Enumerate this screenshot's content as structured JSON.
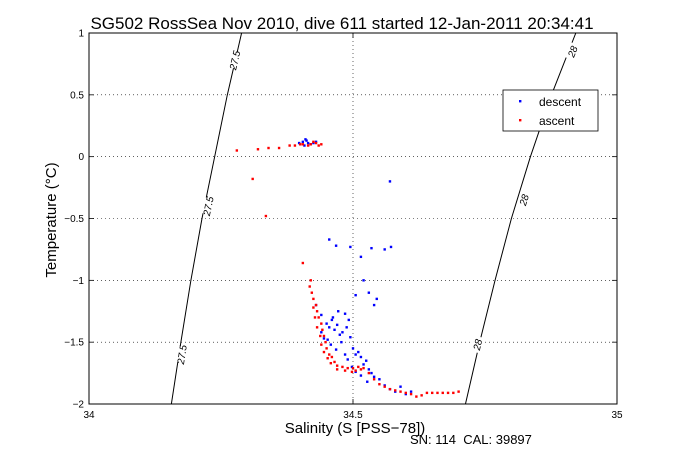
{
  "chart_data": {
    "type": "scatter",
    "title": "SG502 RossSea Nov 2010, dive 611 started 12-Jan-2011 20:34:41",
    "xlabel": "Salinity (S [PSS−78])",
    "ylabel": "Temperature (°C)",
    "xlim": [
      34,
      35
    ],
    "ylim": [
      -2,
      1
    ],
    "x_ticks": [
      34,
      34.5,
      35
    ],
    "y_ticks": [
      -2,
      -1.5,
      -1,
      -0.5,
      0,
      0.5,
      1
    ],
    "x_tick_labels": [
      "34",
      "34.5",
      "35"
    ],
    "y_tick_labels": [
      "−2",
      "−1.5",
      "−1",
      "−0.5",
      "0",
      "0.5",
      "1"
    ],
    "grid": true,
    "legend_position": "top-right",
    "footer": "SN: 114  CAL: 39897",
    "density_contours": [
      {
        "label": "27.5",
        "points": [
          [
            34.289,
            1.0
          ],
          [
            34.262,
            0.5
          ],
          [
            34.238,
            0.0
          ],
          [
            34.214,
            -0.5
          ],
          [
            34.193,
            -1.0
          ],
          [
            34.174,
            -1.5
          ],
          [
            34.156,
            -2.0
          ]
        ],
        "labels_at": [
          [
            34.276,
            0.78
          ],
          [
            34.226,
            -0.4
          ],
          [
            34.176,
            -1.6
          ]
        ]
      },
      {
        "label": "28",
        "points": [
          [
            34.922,
            1.0
          ],
          [
            34.876,
            0.5
          ],
          [
            34.836,
            0.0
          ],
          [
            34.8,
            -0.5
          ],
          [
            34.769,
            -1.0
          ],
          [
            34.74,
            -1.5
          ],
          [
            34.713,
            -2.0
          ]
        ],
        "labels_at": [
          [
            34.916,
            0.85
          ],
          [
            34.824,
            -0.35
          ],
          [
            34.736,
            -1.52
          ]
        ]
      }
    ],
    "series": [
      {
        "name": "descent",
        "color": "#0000ff",
        "points": [
          [
            34.41,
            0.14
          ],
          [
            34.412,
            0.13
          ],
          [
            34.405,
            0.12
          ],
          [
            34.415,
            0.11
          ],
          [
            34.42,
            0.1
          ],
          [
            34.425,
            0.11
          ],
          [
            34.43,
            0.12
          ],
          [
            34.398,
            0.11
          ],
          [
            34.408,
            0.09
          ],
          [
            34.57,
            -0.2
          ],
          [
            34.455,
            -0.67
          ],
          [
            34.468,
            -0.72
          ],
          [
            34.495,
            -0.73
          ],
          [
            34.535,
            -0.74
          ],
          [
            34.56,
            -0.75
          ],
          [
            34.572,
            -0.73
          ],
          [
            34.515,
            -0.81
          ],
          [
            34.52,
            -1.0
          ],
          [
            34.505,
            -1.12
          ],
          [
            34.53,
            -1.1
          ],
          [
            34.545,
            -1.15
          ],
          [
            34.54,
            -1.2
          ],
          [
            34.43,
            -1.2
          ],
          [
            34.44,
            -1.28
          ],
          [
            34.45,
            -1.35
          ],
          [
            34.455,
            -1.38
          ],
          [
            34.46,
            -1.32
          ],
          [
            34.465,
            -1.4
          ],
          [
            34.47,
            -1.36
          ],
          [
            34.475,
            -1.44
          ],
          [
            34.48,
            -1.42
          ],
          [
            34.488,
            -1.38
          ],
          [
            34.495,
            -1.46
          ],
          [
            34.5,
            -1.55
          ],
          [
            34.505,
            -1.6
          ],
          [
            34.51,
            -1.58
          ],
          [
            34.515,
            -1.62
          ],
          [
            34.52,
            -1.68
          ],
          [
            34.525,
            -1.65
          ],
          [
            34.53,
            -1.72
          ],
          [
            34.535,
            -1.75
          ],
          [
            34.54,
            -1.78
          ],
          [
            34.55,
            -1.8
          ],
          [
            34.56,
            -1.85
          ],
          [
            34.57,
            -1.88
          ],
          [
            34.58,
            -1.9
          ],
          [
            34.59,
            -1.86
          ],
          [
            34.6,
            -1.92
          ],
          [
            34.61,
            -1.9
          ],
          [
            34.445,
            -1.47
          ],
          [
            34.458,
            -1.52
          ],
          [
            34.468,
            -1.56
          ],
          [
            34.44,
            -1.42
          ],
          [
            34.452,
            -1.48
          ],
          [
            34.462,
            -1.3
          ],
          [
            34.472,
            -1.25
          ],
          [
            34.485,
            -1.27
          ],
          [
            34.492,
            -1.32
          ],
          [
            34.478,
            -1.5
          ],
          [
            34.485,
            -1.6
          ],
          [
            34.49,
            -1.64
          ],
          [
            34.498,
            -1.7
          ],
          [
            34.505,
            -1.74
          ],
          [
            34.515,
            -1.77
          ],
          [
            34.527,
            -1.82
          ]
        ]
      },
      {
        "name": "ascent",
        "color": "#ff0000",
        "points": [
          [
            34.28,
            0.05
          ],
          [
            34.32,
            0.06
          ],
          [
            34.34,
            0.07
          ],
          [
            34.36,
            0.07
          ],
          [
            34.38,
            0.09
          ],
          [
            34.39,
            0.09
          ],
          [
            34.4,
            0.1
          ],
          [
            34.405,
            0.1
          ],
          [
            34.415,
            0.09
          ],
          [
            34.42,
            0.1
          ],
          [
            34.425,
            0.12
          ],
          [
            34.43,
            0.11
          ],
          [
            34.435,
            0.09
          ],
          [
            34.44,
            0.1
          ],
          [
            34.31,
            -0.18
          ],
          [
            34.335,
            -0.48
          ],
          [
            34.405,
            -0.86
          ],
          [
            34.42,
            -1.0
          ],
          [
            34.418,
            -1.05
          ],
          [
            34.422,
            -1.1
          ],
          [
            34.425,
            -1.15
          ],
          [
            34.43,
            -1.2
          ],
          [
            34.432,
            -1.25
          ],
          [
            34.435,
            -1.3
          ],
          [
            34.44,
            -1.35
          ],
          [
            34.442,
            -1.4
          ],
          [
            34.445,
            -1.45
          ],
          [
            34.448,
            -1.5
          ],
          [
            34.45,
            -1.55
          ],
          [
            34.455,
            -1.6
          ],
          [
            34.46,
            -1.62
          ],
          [
            34.465,
            -1.66
          ],
          [
            34.47,
            -1.69
          ],
          [
            34.48,
            -1.7
          ],
          [
            34.49,
            -1.71
          ],
          [
            34.5,
            -1.71
          ],
          [
            34.51,
            -1.7
          ],
          [
            34.52,
            -1.71
          ],
          [
            34.53,
            -1.75
          ],
          [
            34.54,
            -1.8
          ],
          [
            34.55,
            -1.84
          ],
          [
            34.56,
            -1.86
          ],
          [
            34.57,
            -1.88
          ],
          [
            34.58,
            -1.89
          ],
          [
            34.59,
            -1.9
          ],
          [
            34.6,
            -1.91
          ],
          [
            34.61,
            -1.92
          ],
          [
            34.62,
            -1.94
          ],
          [
            34.63,
            -1.93
          ],
          [
            34.64,
            -1.91
          ],
          [
            34.65,
            -1.91
          ],
          [
            34.66,
            -1.91
          ],
          [
            34.67,
            -1.91
          ],
          [
            34.68,
            -1.91
          ],
          [
            34.69,
            -1.91
          ],
          [
            34.7,
            -1.9
          ],
          [
            34.425,
            -1.22
          ],
          [
            34.428,
            -1.3
          ],
          [
            34.432,
            -1.38
          ],
          [
            34.438,
            -1.45
          ],
          [
            34.44,
            -1.52
          ],
          [
            34.445,
            -1.58
          ],
          [
            34.452,
            -1.63
          ],
          [
            34.458,
            -1.67
          ],
          [
            34.47,
            -1.72
          ],
          [
            34.485,
            -1.73
          ],
          [
            34.498,
            -1.74
          ],
          [
            34.505,
            -1.73
          ],
          [
            34.515,
            -1.72
          ]
        ]
      }
    ]
  }
}
